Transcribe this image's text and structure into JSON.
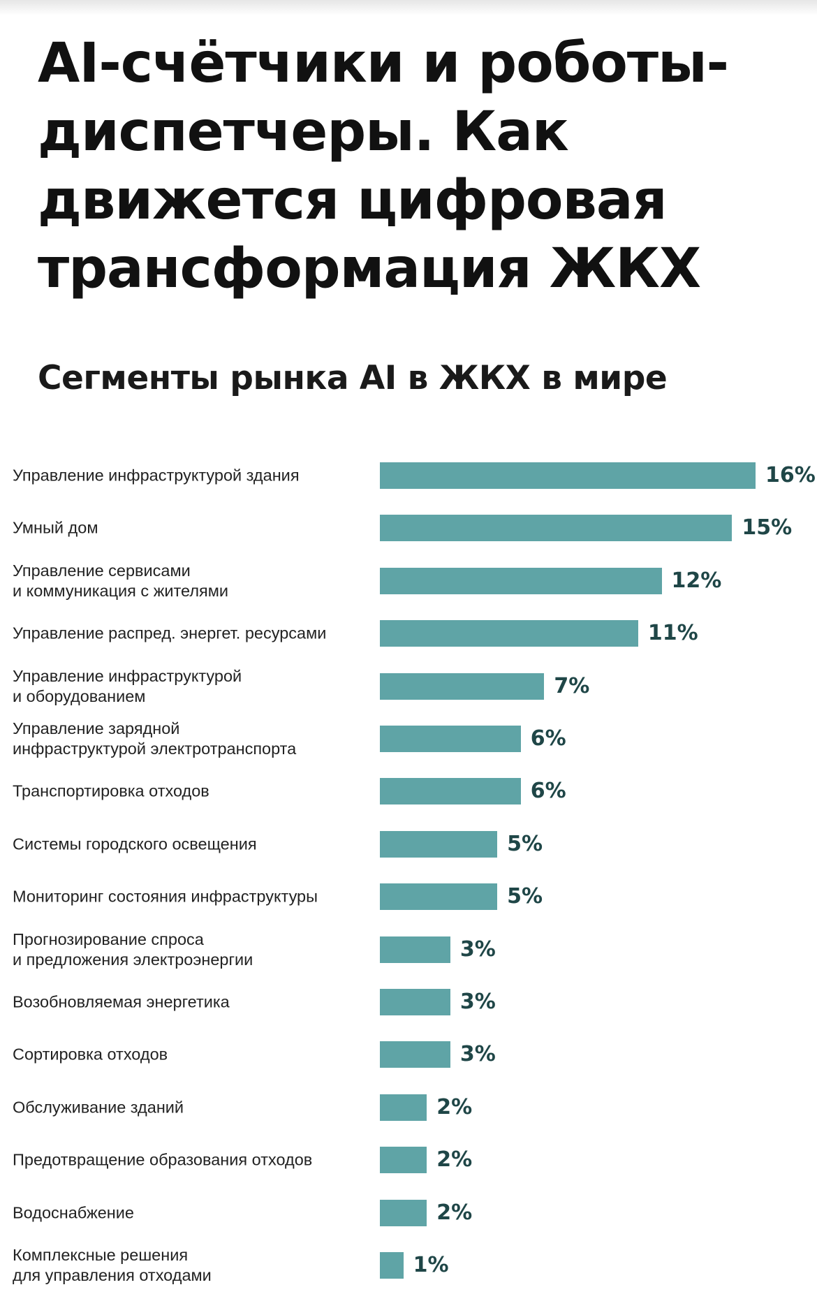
{
  "article": {
    "title_lines": [
      "AI-счётчики и роботы-",
      "диспетчеры. Как",
      "движется цифровая",
      "трансформация ЖКХ"
    ]
  },
  "chart_data": {
    "type": "bar",
    "orientation": "horizontal",
    "title": "Сегменты рынка AI в ЖКХ в мире",
    "xlabel": "",
    "ylabel": "",
    "unit": "%",
    "grid": false,
    "xlim": [
      0,
      16
    ],
    "bar_color": "#5fa4a6",
    "value_label_color": "#1f4647",
    "categories": [
      "Управление инфраструктурой здания",
      "Умный дом",
      "Управление сервисами\nи коммуникация с жителями",
      "Управление распред. энергет. ресурсами",
      "Управление инфраструктурой\nи оборудованием",
      "Управление зарядной\nинфраструктурой электротранспорта",
      "Транспортировка отходов",
      "Системы городского освещения",
      "Мониторинг состояния инфраструктуры",
      "Прогнозирование спроса\nи предложения электроэнергии",
      "Возобновляемая энергетика",
      "Сортировка отходов",
      "Обслуживание зданий",
      "Предотвращение образования отходов",
      "Водоснабжение",
      "Комплексные решения\nдля управления отходами"
    ],
    "values": [
      16,
      15,
      12,
      11,
      7,
      6,
      6,
      5,
      5,
      3,
      3,
      3,
      2,
      2,
      2,
      1
    ],
    "value_labels": [
      "16%",
      "15%",
      "12%",
      "11%",
      "7%",
      "6%",
      "6%",
      "5%",
      "5%",
      "3%",
      "3%",
      "3%",
      "2%",
      "2%",
      "2%",
      "1%"
    ]
  }
}
